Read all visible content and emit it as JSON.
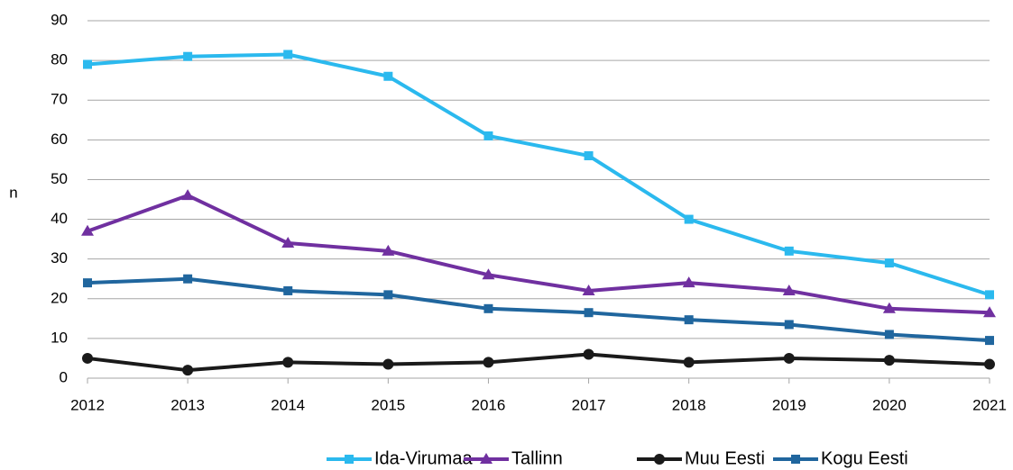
{
  "chart_data": {
    "type": "line",
    "y_label": "n",
    "x": [
      2012,
      2013,
      2014,
      2015,
      2016,
      2017,
      2018,
      2019,
      2020,
      2021
    ],
    "xlim": [
      2012,
      2021
    ],
    "xticks": [
      2012,
      2013,
      2014,
      2015,
      2016,
      2017,
      2018,
      2019,
      2020,
      2021
    ],
    "ylim": [
      0,
      90
    ],
    "yticks": [
      0,
      10,
      20,
      30,
      40,
      50,
      60,
      70,
      80,
      90
    ],
    "grid": true,
    "legend": "bottom",
    "series": [
      {
        "name": "Ida-Virumaa",
        "color": "#2bb9ee",
        "marker": "square",
        "values": [
          79,
          81,
          81.5,
          76,
          61,
          56,
          40,
          32,
          29,
          21
        ]
      },
      {
        "name": "Tallinn",
        "color": "#7030a0",
        "marker": "triangle",
        "values": [
          37,
          46,
          34,
          32,
          26,
          22,
          24,
          22,
          17.5,
          16.5
        ]
      },
      {
        "name": "Muu Eesti",
        "color": "#1a1a1a",
        "marker": "circle",
        "values": [
          5,
          2,
          4,
          3.5,
          4,
          6,
          4,
          5,
          4.5,
          3.5
        ]
      },
      {
        "name": "Kogu Eesti",
        "color": "#20669e",
        "marker": "square",
        "values": [
          24,
          25,
          22,
          21,
          17.5,
          16.5,
          14.7,
          13.5,
          11,
          9.5
        ]
      }
    ]
  }
}
